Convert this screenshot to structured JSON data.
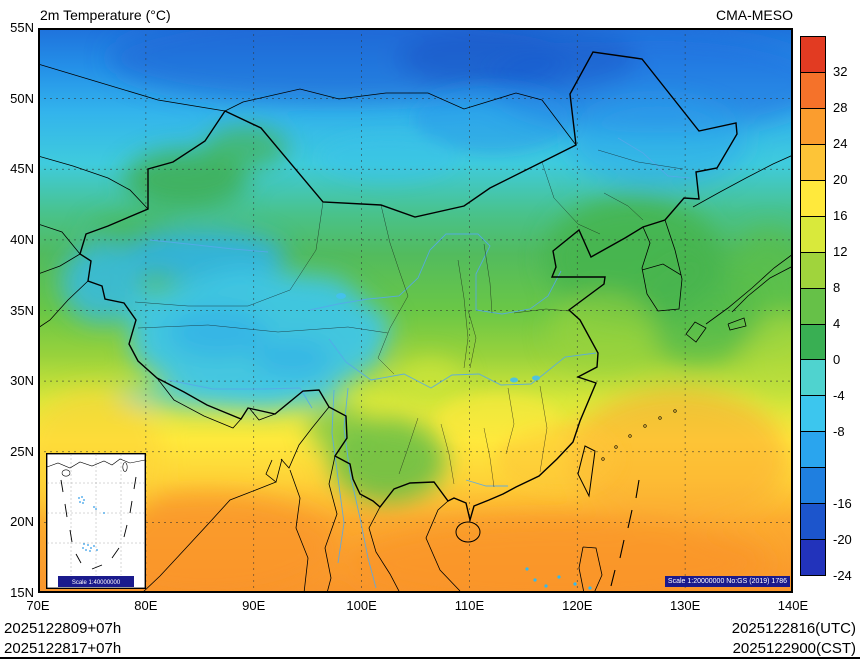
{
  "header": {
    "title": "2m Temperature (°C)",
    "model_label": "CMA-MESO"
  },
  "axes": {
    "lat_labels": [
      "55N",
      "50N",
      "45N",
      "40N",
      "35N",
      "30N",
      "25N",
      "20N",
      "15N"
    ],
    "lon_labels": [
      "70E",
      "80E",
      "90E",
      "100E",
      "110E",
      "120E",
      "130E",
      "140E"
    ]
  },
  "colorbar": {
    "tick_labels": [
      "32",
      "28",
      "24",
      "20",
      "16",
      "12",
      "8",
      "4",
      "0",
      "-4",
      "-8",
      "-16",
      "-20",
      "-24"
    ],
    "segments": [
      {
        "range": "above 32",
        "color": "#e23b22"
      },
      {
        "range": "28 to 32",
        "color": "#f5722a"
      },
      {
        "range": "24 to 28",
        "color": "#fb9d2e"
      },
      {
        "range": "20 to 24",
        "color": "#fdc437"
      },
      {
        "range": "16 to 20",
        "color": "#ffe93c"
      },
      {
        "range": "12 to 16",
        "color": "#d9e93b"
      },
      {
        "range": "8 to 12",
        "color": "#a0d43c"
      },
      {
        "range": "4 to 8",
        "color": "#66c148"
      },
      {
        "range": "0 to 4",
        "color": "#39af53"
      },
      {
        "range": "-4 to 0",
        "color": "#4fd3cf"
      },
      {
        "range": "-8 to -4",
        "color": "#3cc6ee"
      },
      {
        "range": "-12 to -8",
        "color": "#2aa5ee"
      },
      {
        "range": "-16 to -12",
        "color": "#1f7fe0"
      },
      {
        "range": "-20 to -16",
        "color": "#1c55cc"
      },
      {
        "range": "-24 to -20",
        "color": "#2233bb"
      }
    ]
  },
  "map_notes": {
    "main_scale": "Scale 1:20000000 No:GS (2019) 1786",
    "inset_scale": "Scale 1:40000000"
  },
  "footer": {
    "left_line1": "2025122809+07h",
    "left_line2": "2025122817+07h",
    "right_line1": "2025122816(UTC)",
    "right_line2": "2025122900(CST)"
  },
  "chart_data": {
    "type": "heatmap",
    "title": "2m Temperature (°C)",
    "model": "CMA-MESO",
    "extent": {
      "lon_deg_e": [
        70,
        140
      ],
      "lat_deg_n": [
        15,
        55
      ]
    },
    "x_ticks": [
      "70E",
      "80E",
      "90E",
      "100E",
      "110E",
      "120E",
      "130E",
      "140E"
    ],
    "y_ticks": [
      "55N",
      "50N",
      "45N",
      "40N",
      "35N",
      "30N",
      "25N",
      "20N",
      "15N"
    ],
    "colorbar": {
      "units": "°C",
      "boundaries": [
        32,
        28,
        24,
        20,
        16,
        12,
        8,
        4,
        0,
        -4,
        -8,
        -12,
        -16,
        -20,
        -24
      ],
      "labeled_boundaries": [
        32,
        28,
        24,
        20,
        16,
        12,
        8,
        4,
        0,
        -4,
        -8,
        -16,
        -20,
        -24
      ],
      "segment_colors_top_to_bottom": [
        "#e23b22",
        "#f5722a",
        "#fb9d2e",
        "#fdc437",
        "#ffe93c",
        "#d9e93b",
        "#a0d43c",
        "#66c148",
        "#39af53",
        "#4fd3cf",
        "#3cc6ee",
        "#2aa5ee",
        "#1f7fe0",
        "#1c55cc",
        "#2233bb"
      ],
      "legend_position": "right"
    },
    "valid_time": {
      "utc": "2025122816(UTC)",
      "cst": "2025122900(CST)"
    },
    "init_plus_lead": [
      "2025122809+07h",
      "2025122817+07h"
    ],
    "field_summary": [
      {
        "region": "Far north / northern Mongolia border (50-55N)",
        "approx_temp_c": "-16 to -24"
      },
      {
        "region": "Northeast China and Mongolia (42-50N)",
        "approx_temp_c": "-8 to -16"
      },
      {
        "region": "Tarim and Junggar basins, Xinjiang",
        "approx_temp_c": "-4 to -10"
      },
      {
        "region": "Tibetan Plateau",
        "approx_temp_c": "-4 to -12"
      },
      {
        "region": "Northwest mountain ranges (Altai/Tianshan)",
        "approx_temp_c": "0 to 8"
      },
      {
        "region": "North China Plain, Korea, Bohai coast",
        "approx_temp_c": "0 to 8"
      },
      {
        "region": "Central and eastern China (28-35N)",
        "approx_temp_c": "4 to 12"
      },
      {
        "region": "South China and Taiwan Strait",
        "approx_temp_c": "12 to 20"
      },
      {
        "region": "South China Sea, Bay of Bengal, far south",
        "approx_temp_c": "20 to 28"
      }
    ],
    "grid": "dashed graticule every 5 deg latitude and 10 deg longitude"
  }
}
